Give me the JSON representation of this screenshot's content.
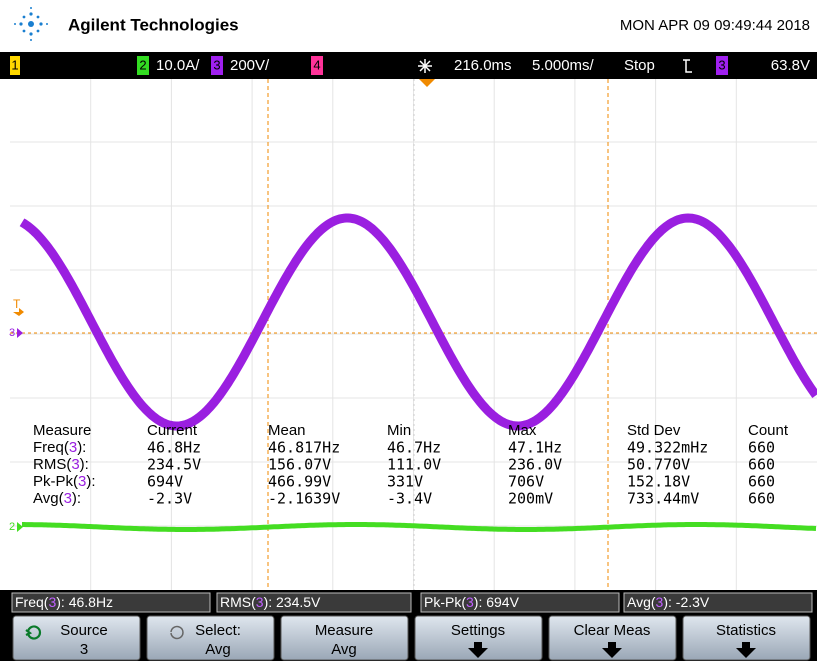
{
  "header": {
    "brand": "Agilent Technologies",
    "datetime": "MON APR 09 09:49:44 2018"
  },
  "status_bar": {
    "ch1": "1",
    "ch2": "2",
    "ch2_scale": "10.0A/",
    "ch3": "3",
    "ch3_scale": "200V/",
    "ch4": "4",
    "time_delay": "216.0ms",
    "time_scale": "5.000ms/",
    "run_state": "Stop",
    "trigger_source": "3",
    "trigger_level": "63.8V"
  },
  "markers": {
    "trigger": "T",
    "ch3": "3",
    "ch2": "2"
  },
  "measurements": {
    "headers": [
      "Measure",
      "Current",
      "Mean",
      "Min",
      "Max",
      "Std Dev",
      "Count"
    ],
    "rows": [
      {
        "label": [
          "Freq(",
          "3",
          "):"
        ],
        "cells": [
          "46.8Hz",
          "46.817Hz",
          "46.7Hz",
          "47.1Hz",
          "49.322mHz",
          "660"
        ]
      },
      {
        "label": [
          "RMS(",
          "3",
          "):"
        ],
        "cells": [
          "234.5V",
          "156.07V",
          "111.0V",
          "236.0V",
          "50.770V",
          "660"
        ]
      },
      {
        "label": [
          "Pk-Pk(",
          "3",
          "):"
        ],
        "cells": [
          "694V",
          "466.99V",
          "331V",
          "706V",
          "152.18V",
          "660"
        ]
      },
      {
        "label": [
          "Avg(",
          "3",
          "):"
        ],
        "cells": [
          "-2.3V",
          "-2.1639V",
          "-3.4V",
          "200mV",
          "733.44mV",
          "660"
        ]
      }
    ]
  },
  "quick_measurements": [
    [
      "Freq(",
      "3",
      "): 46.8Hz"
    ],
    [
      "RMS(",
      "3",
      "): 234.5V"
    ],
    [
      "Pk-Pk(",
      "3",
      "): 694V"
    ],
    [
      "Avg(",
      "3",
      "): -2.3V"
    ]
  ],
  "softkeys": [
    {
      "label": "Source",
      "value": "3"
    },
    {
      "label": "Select:",
      "value": "Avg"
    },
    {
      "label": "Measure",
      "value": "Avg"
    },
    {
      "label": "Settings"
    },
    {
      "label": "Clear Meas"
    },
    {
      "label": "Statistics"
    }
  ]
}
